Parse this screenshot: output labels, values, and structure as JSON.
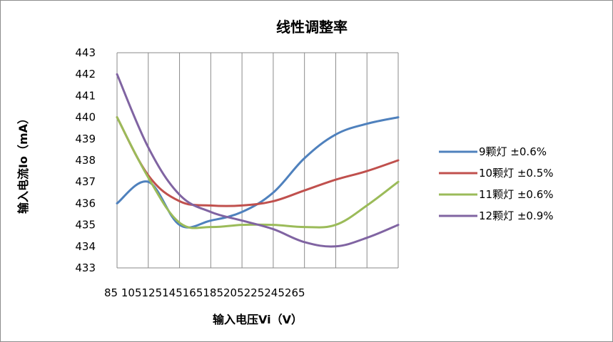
{
  "chart_data": {
    "type": "line",
    "title": "线性调整率",
    "xlabel": "输入电压Vi（V）",
    "ylabel": "输入电流Io（mA）",
    "categories": [
      "85",
      "105",
      "125",
      "145",
      "165",
      "185",
      "205",
      "225",
      "245",
      "265"
    ],
    "x_tick_labels": "85 105125145165185205225245265",
    "ylim": [
      433,
      443
    ],
    "y_ticks": [
      "433",
      "434",
      "435",
      "436",
      "437",
      "438",
      "439",
      "440",
      "441",
      "442",
      "443"
    ],
    "grid": "vertical",
    "legend_position": "right",
    "series": [
      {
        "name": "9颗灯 ±0.6%",
        "color": "#4f81bd",
        "values": [
          436,
          437,
          435,
          435.2,
          435.6,
          436.5,
          438.1,
          439.2,
          439.7,
          440
        ]
      },
      {
        "name": "10颗灯 ±0.5%",
        "color": "#c0504d",
        "values": [
          440,
          437.3,
          436.1,
          435.9,
          435.9,
          436.1,
          436.6,
          437.1,
          437.5,
          438
        ]
      },
      {
        "name": "11颗灯 ±0.6%",
        "color": "#9bbb59",
        "values": [
          440,
          437.2,
          435.1,
          434.9,
          435,
          435,
          434.9,
          435,
          435.9,
          437
        ]
      },
      {
        "name": "12颗灯 ±0.9%",
        "color": "#8064a2",
        "values": [
          442,
          438.6,
          436.4,
          435.6,
          435.2,
          434.8,
          434.2,
          434,
          434.4,
          435
        ]
      }
    ]
  }
}
